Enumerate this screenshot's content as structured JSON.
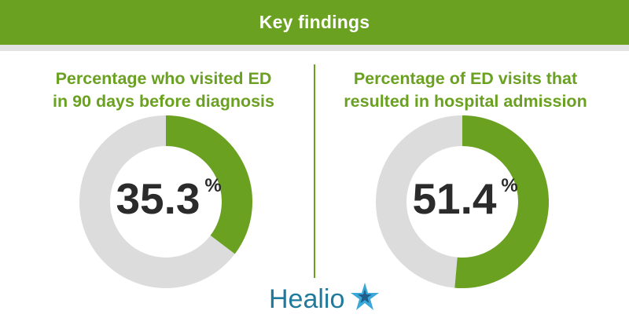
{
  "header": {
    "title": "Key findings"
  },
  "colors": {
    "accent": "#6aa121",
    "track": "#dcdcdc",
    "text_dark": "#2b2b2b",
    "brand_blue": "#1f7a9c",
    "brand_star": "#3aa8d8"
  },
  "panels": [
    {
      "title_lines": [
        "Percentage who visited ED",
        "in 90 days before diagnosis"
      ],
      "value": "35.3",
      "unit": "%"
    },
    {
      "title_lines": [
        "Percentage of ED visits that",
        "resulted in hospital admission"
      ],
      "value": "51.4",
      "unit": "%"
    }
  ],
  "chart_data": [
    {
      "type": "pie",
      "title": "Percentage who visited ED in 90 days before diagnosis",
      "values": [
        35.3,
        64.7
      ]
    },
    {
      "type": "pie",
      "title": "Percentage of ED visits that resulted in hospital admission",
      "values": [
        51.4,
        48.6
      ]
    }
  ],
  "brand": {
    "logo_text": "Healio",
    "logo_icon": "star-icon"
  }
}
